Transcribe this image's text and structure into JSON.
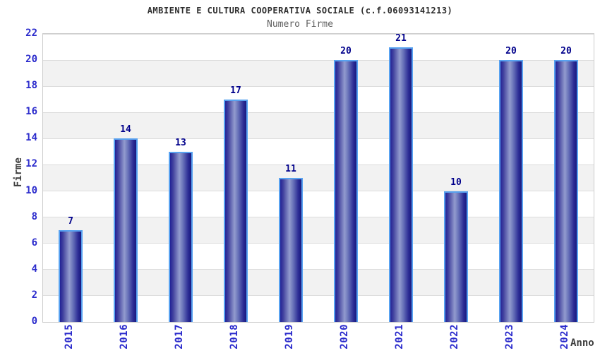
{
  "chart_data": {
    "type": "bar",
    "title": "AMBIENTE E CULTURA COOPERATIVA SOCIALE (c.f.06093141213)",
    "subtitle": "Numero Firme",
    "xlabel": "Anno",
    "ylabel": "Firme",
    "categories": [
      "2015",
      "2016",
      "2017",
      "2018",
      "2019",
      "2020",
      "2021",
      "2022",
      "2023",
      "2024"
    ],
    "values": [
      7,
      14,
      13,
      17,
      11,
      20,
      21,
      10,
      20,
      20
    ],
    "ylim": [
      0,
      22
    ],
    "ytick_step": 2,
    "grid": true,
    "legend_position": "none",
    "value_labels_shown": true,
    "colors": {
      "tick_label": "#2b2bcc",
      "value_label": "#00008b",
      "title": "#2e2e2e",
      "subtitle": "#606060",
      "axis_title": "#3d3d3d",
      "bar_dark": "#18187e",
      "bar_highlight": "#929bce",
      "bar_border": "#58a2f0",
      "band_gray": "#f2f2f2",
      "band_white": "#ffffff",
      "plot_border": "#cccccc",
      "gridline": "#dcdcdc"
    }
  }
}
